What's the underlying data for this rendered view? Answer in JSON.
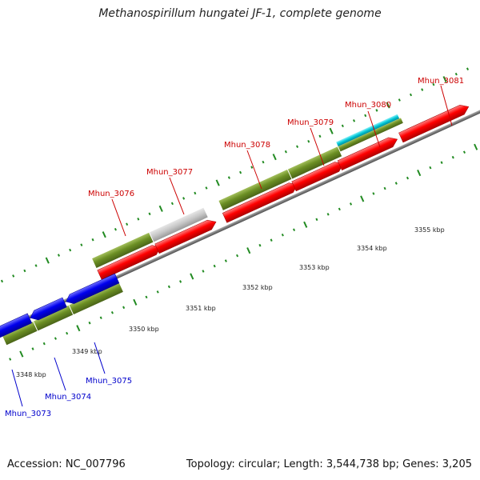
{
  "title": "Methanospirillum hungatei JF-1, complete genome",
  "footer": {
    "accession": "Accession: NC_007796",
    "summary": "Topology: circular; Length: 3,544,738 bp; Genes: 3,205"
  },
  "colors": {
    "forward_gene": "#ff0000",
    "reverse_gene": "#0000ee",
    "cds_feature": "#6b8e23",
    "grey_feature": "#c0c0c0",
    "cyan_feature": "#00c8d8",
    "backbone": "#808080",
    "tick": "#228b22",
    "forward_label": "#cc0000",
    "reverse_label": "#0000cc"
  },
  "scale_ticks": [
    "3348 kbp",
    "3349 kbp",
    "3350 kbp",
    "3351 kbp",
    "3352 kbp",
    "3353 kbp",
    "3354 kbp",
    "3355 kbp"
  ],
  "gene_labels": [
    "Mhun_3073",
    "Mhun_3074",
    "Mhun_3075",
    "Mhun_3076",
    "Mhun_3077",
    "Mhun_3078",
    "Mhun_3079",
    "Mhun_3080",
    "Mhun_3081"
  ]
}
